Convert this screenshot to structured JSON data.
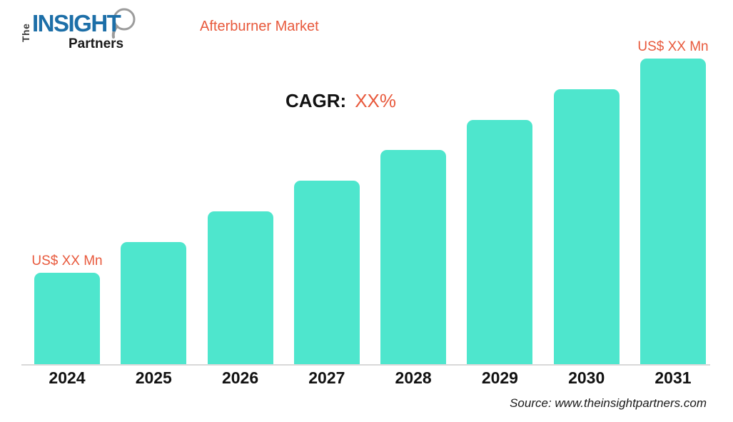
{
  "logo": {
    "the": "The",
    "insight": "INSIGHT",
    "partners": "Partners",
    "icon": "magnifier-icon"
  },
  "header": {
    "title": "Afterburner Market"
  },
  "cagr": {
    "label": "CAGR:",
    "value": "XX%"
  },
  "chart_data": {
    "type": "bar",
    "title": "Afterburner Market",
    "categories": [
      "2024",
      "2025",
      "2026",
      "2027",
      "2028",
      "2029",
      "2030",
      "2031"
    ],
    "values": [
      30,
      40,
      50,
      60,
      70,
      80,
      90,
      100
    ],
    "values_note": "relative bar heights estimated from pixels; actual values masked as XX on the chart",
    "bar_labels": {
      "first": "US$ XX Mn",
      "last": "US$ XX Mn"
    },
    "xlabel": "",
    "ylabel": "",
    "ylim": [
      0,
      100
    ],
    "y_axis_visible": false,
    "grid": false,
    "legend": false,
    "bar_color": "#4ee6cd"
  },
  "footer": {
    "source": "Source: www.theinsightpartners.com"
  },
  "colors": {
    "accent_orange": "#e8593c",
    "bar_teal": "#4ee6cd",
    "logo_blue": "#1d6fa8",
    "axis_line": "#d9d9d9",
    "text_black": "#111111"
  }
}
